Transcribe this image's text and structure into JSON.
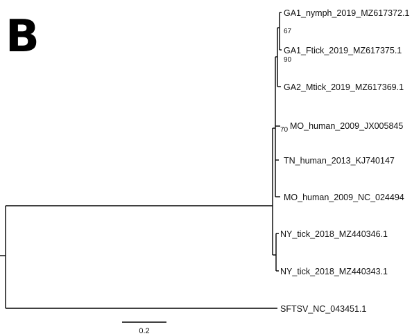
{
  "panel_label": "B",
  "tree": {
    "leaves": [
      "GA1_nymph_2019_MZ617372.1",
      "GA1_Ftick_2019_MZ617375.1",
      "GA2_Mtick_2019_MZ617369.1",
      "MO_human_2009_JX005845",
      "TN_human_2013_KJ740147",
      "MO_human_2009_NC_024494",
      "NY_tick_2018_MZ440346.1",
      "NY_tick_2018_MZ440343.1",
      "SFTSV_NC_043451.1"
    ],
    "bootstrap": {
      "n67": "67",
      "n90": "90",
      "n70": "70"
    }
  },
  "scale_bar": {
    "label": "0.2"
  }
}
